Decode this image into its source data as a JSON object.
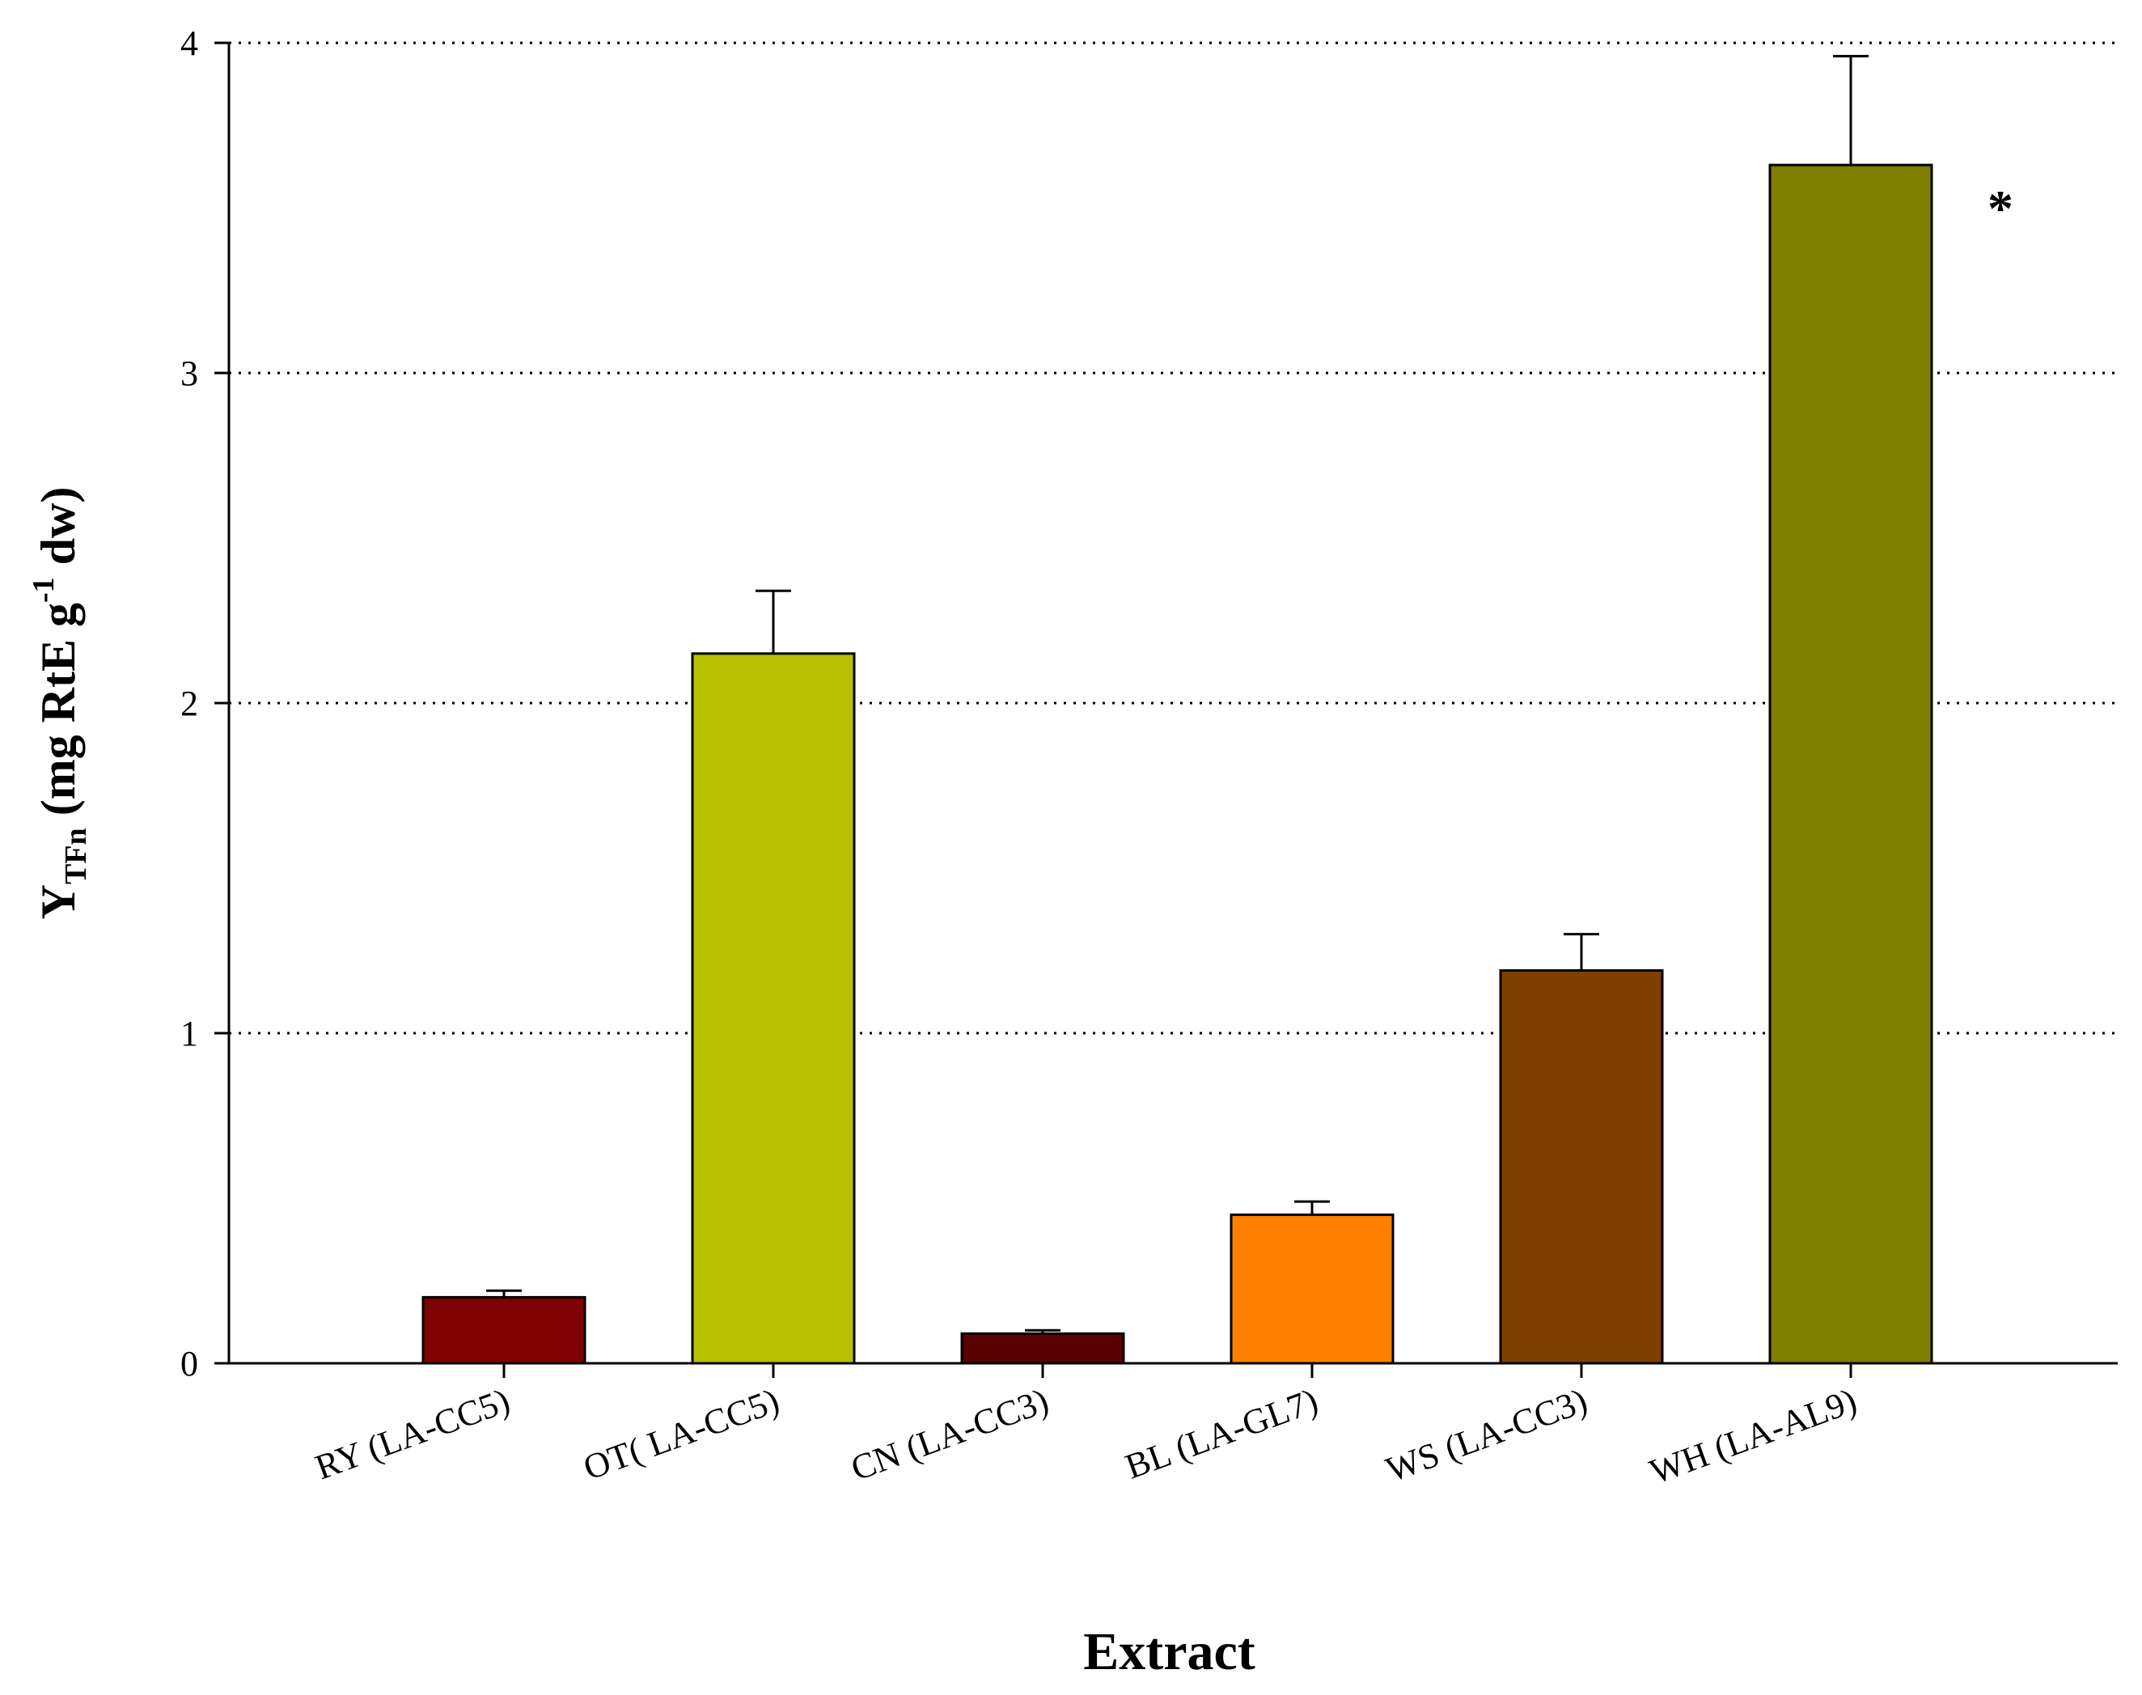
{
  "chart_data": {
    "type": "bar",
    "categories": [
      "RY (LA-CC5)",
      "OT( LA-CC5)",
      "CN (LA-CC3)",
      "BL (LA-GL7)",
      "WS (LA-CC3)",
      "WH (LA-AL9)"
    ],
    "values": [
      0.2,
      2.15,
      0.09,
      0.45,
      1.19,
      3.63
    ],
    "errors": [
      0.02,
      0.19,
      0.01,
      0.04,
      0.11,
      0.33
    ],
    "colors": [
      "#7f0000",
      "#b8c000",
      "#5c0000",
      "#ff7f00",
      "#7f3f00",
      "#7f7f00"
    ],
    "annotations": [
      {
        "category": "WH (LA-AL9)",
        "text": "*"
      }
    ],
    "xlabel": "Extract",
    "ylabel": {
      "main": "Y",
      "subscript": "TFn",
      "rest": " (mg RtE g",
      "superscript": "-1",
      "tail": " dw)"
    },
    "ylim": [
      0,
      4
    ],
    "yticks": [
      0,
      1,
      2,
      3,
      4
    ],
    "grid": "horizontal dotted at major y ticks"
  }
}
